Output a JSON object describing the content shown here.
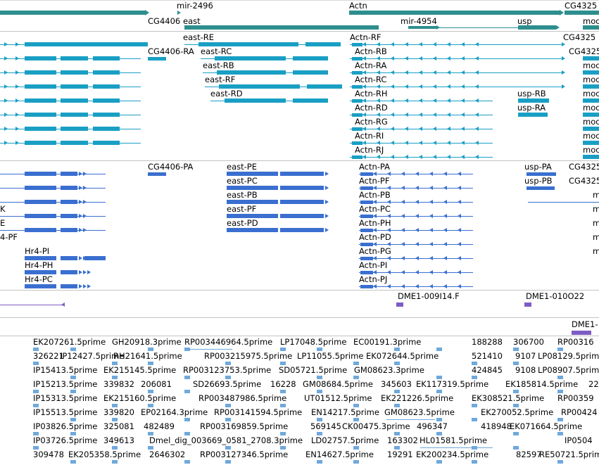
{
  "colors": {
    "gene": "#2e8e8e",
    "ncrna": "#2e8e8e",
    "flybase_transcript": "#1a9fc4",
    "refseq_transcript": "#3a6fd0",
    "est_alignment": "#7d5cc4",
    "est_marker": "#6fa8dc",
    "divider": "#c2c2c2"
  },
  "tracks": {
    "genes": {
      "labels": [
        "mir-2496",
        "Actn",
        "CG4325",
        "CG4406",
        "east",
        "mir-4954",
        "usp",
        "moo"
      ]
    },
    "flybase_transcripts": {
      "labels": [
        "east-RE",
        "Actn-RF",
        "CG4325",
        "CG4406-RA",
        "east-RC",
        "Actn-RB",
        "CG4325",
        "east-RB",
        "Actn-RA",
        "moo",
        "east-RF",
        "Actn-RC",
        "moo",
        "east-RD",
        "Actn-RH",
        "usp-RB",
        "moo",
        "Actn-RD",
        "usp-RA",
        "moo",
        "Actn-RG",
        "moo",
        "Actn-RI",
        "moo",
        "Actn-RJ",
        "moo"
      ]
    },
    "refseq_transcripts": {
      "labels": [
        "CG4406-PA",
        "east-PE",
        "Actn-PA",
        "usp-PA",
        "CG4325",
        "east-PC",
        "Actn-PF",
        "usp-PB",
        "CG4325",
        "east-PB",
        "Actn-PB",
        "K",
        "m",
        "east-PF",
        "Actn-PC",
        "E",
        "m",
        "east-PD",
        "Actn-PH",
        "4-PF",
        "m",
        "Actn-PD",
        "Hr4-PI",
        "Actn-PG",
        "m",
        "Hr4-PH",
        "Actn-PI",
        "m",
        "Hr4-PC",
        "Actn-PJ"
      ]
    },
    "est_clones": {
      "labels": [
        "DME1-009I14.F",
        "DME1-010O22",
        "DME1-"
      ]
    },
    "est_ends": {
      "labels": [
        "EK207261.5prime",
        "GH20918.3prime",
        "RP003446964.5prime",
        "LP17048.5prime",
        "EC00191.3prime",
        "188288",
        "306700",
        "RP00316",
        "326221",
        "IP12427.5prime",
        "RH21641.5prime",
        "RP003215975.5prime",
        "LP11055.5prime",
        "EK072644.5prime",
        "521410",
        "9107",
        "LP08129.5prime",
        "IP15413.5prime",
        "EK215145.5prime",
        "RP003123753.5prime",
        "SD05721.5prime",
        "GM08623.3prime",
        "424845",
        "9108",
        "LP08907.5prime",
        "IP15213.5prime",
        "339832",
        "206081",
        "SD26693.5prime",
        "16228",
        "GM08684.5prime",
        "345603",
        "EK117319.5prime",
        "EK185814.5prime",
        "22",
        "IP15313.5prime",
        "EK215160.5prime",
        "RP003487986.5prime",
        "UT01512.5prime",
        "EK221226.5prime",
        "EK308521.5prime",
        "RP00359",
        "IP15513.5prime",
        "339820",
        "EP02164.3prime",
        "RP003141594.5prime",
        "EN14217.5prime",
        "GM08623.5prime",
        "EK270052.5prime",
        "RP00424",
        "IP03826.5prime",
        "325081",
        "482489",
        "RP003169859.5prime",
        "569145",
        "CK00475.3prime",
        "496347",
        "418948",
        "EK071664.5prime",
        "IP03726.5prime",
        "349613",
        "Dmel_dig_003669_0581_2708.3prime",
        "LD02757.5prime",
        "163302",
        "HL01581.5prime",
        "IP0504",
        "309478",
        "EK205358.5prime",
        "2646302",
        "RP003127346.5prime",
        "EN14627.5prime",
        "19291",
        "EK200234.5prime",
        "82597",
        "RE50721.5prime"
      ]
    }
  }
}
